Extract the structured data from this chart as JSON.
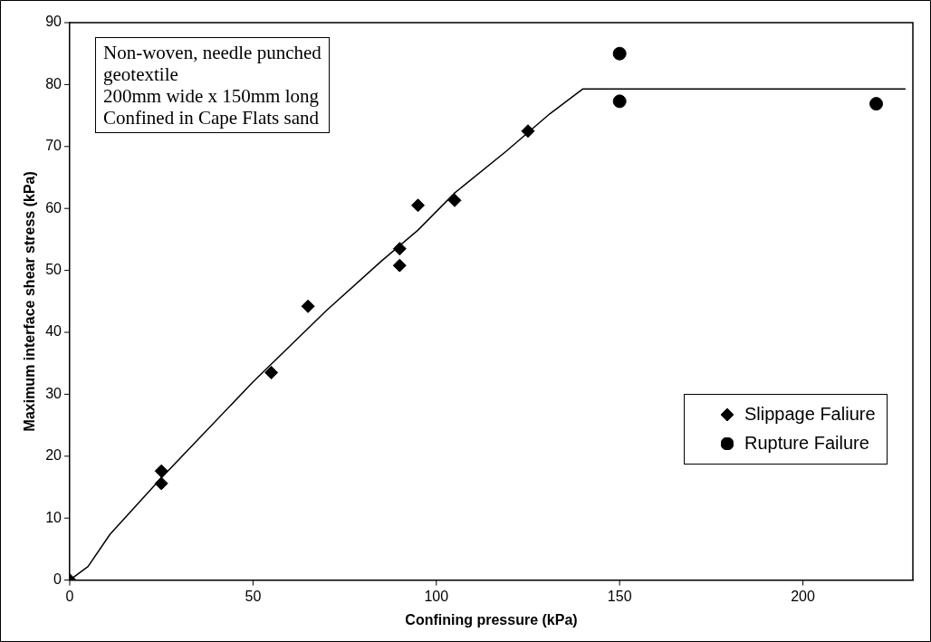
{
  "chart_data": {
    "type": "scatter",
    "xlabel": "Confining pressure (kPa)",
    "ylabel": "Maximum interface shear stress (kPa)",
    "xlim": [
      0,
      230
    ],
    "xticks": [
      0,
      50,
      100,
      150,
      200
    ],
    "ylim": [
      0,
      90
    ],
    "yticks": [
      0,
      10,
      20,
      30,
      40,
      50,
      60,
      70,
      80,
      90
    ],
    "grid": false,
    "legend": "bottom right",
    "annotations": [
      "Non-woven, needle punched\ngeotextile\n200mm wide x 150mm long\nConfined in Cape Flats sand"
    ],
    "series": [
      {
        "name": "Slippage Faliure",
        "color": "#000000",
        "marker": "diamond",
        "x": [
          0,
          25,
          25,
          55,
          65,
          90,
          90,
          95,
          105,
          125
        ],
        "values": [
          0,
          17.6,
          15.6,
          33.5,
          44.2,
          53.5,
          50.8,
          60.5,
          61.3,
          72.5
        ]
      },
      {
        "name": "Rupture Failure",
        "color": "#000000",
        "marker": "circle",
        "x": [
          150,
          150,
          220
        ],
        "values": [
          85.0,
          77.3,
          76.9
        ]
      },
      {
        "type": "line",
        "color": "#000000",
        "marker": "none",
        "line_style": "solid",
        "x": [
          0,
          5,
          11,
          25,
          50,
          70,
          85,
          95,
          105,
          119,
          131,
          140,
          228
        ],
        "values": [
          0,
          2.2,
          7.4,
          16.5,
          32,
          43.5,
          51.5,
          56.5,
          62.5,
          69.2,
          75.3,
          79.3,
          79.3
        ]
      }
    ]
  }
}
